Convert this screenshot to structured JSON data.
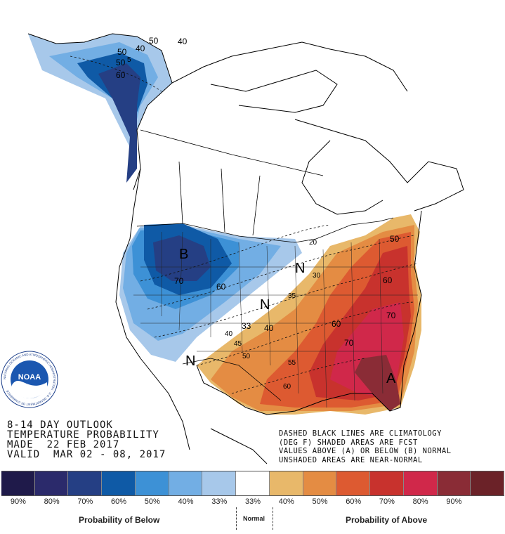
{
  "map": {
    "contour_labels": [
      {
        "text": "50",
        "kind": "below"
      },
      {
        "text": "40",
        "kind": "below"
      },
      {
        "text": "50",
        "kind": "below"
      },
      {
        "text": "60",
        "kind": "below"
      },
      {
        "text": "70",
        "kind": "below"
      },
      {
        "text": "60",
        "kind": "below"
      },
      {
        "text": "40",
        "kind": "below"
      },
      {
        "text": "50",
        "kind": "below"
      },
      {
        "text": "70",
        "kind": "above"
      },
      {
        "text": "60",
        "kind": "above"
      },
      {
        "text": "60",
        "kind": "above"
      },
      {
        "text": "50",
        "kind": "above"
      },
      {
        "text": "70",
        "kind": "above"
      },
      {
        "text": "40",
        "kind": "above"
      },
      {
        "text": "33",
        "kind": "above"
      },
      {
        "text": "45",
        "kind": "clim"
      },
      {
        "text": "35",
        "kind": "clim"
      },
      {
        "text": "30",
        "kind": "clim"
      },
      {
        "text": "55",
        "kind": "clim"
      },
      {
        "text": "60",
        "kind": "clim"
      },
      {
        "text": "40",
        "kind": "clim"
      },
      {
        "text": "50",
        "kind": "clim"
      },
      {
        "text": "20",
        "kind": "clim"
      },
      {
        "text": "5",
        "kind": "clim"
      }
    ],
    "region_letters": [
      {
        "text": "B"
      },
      {
        "text": "A"
      },
      {
        "text": "N"
      },
      {
        "text": "N"
      },
      {
        "text": "N"
      }
    ]
  },
  "logo": {
    "text": "NOAA",
    "ring_text": "NATIONAL OCEANIC AND ATMOSPHERIC ADMINISTRATION · U.S. DEPARTMENT OF COMMERCE"
  },
  "info": {
    "line1": "8-14 DAY OUTLOOK",
    "line2": "TEMPERATURE PROBABILITY",
    "line3": "MADE  22 FEB 2017",
    "line4": "VALID  MAR 02 - 08, 2017"
  },
  "notes": {
    "line1": "DASHED BLACK LINES ARE CLIMATOLOGY",
    "line2": "(DEG F) SHADED AREAS ARE FCST",
    "line3": "VALUES ABOVE (A) OR BELOW (B) NORMAL",
    "line4": "UNSHADED AREAS ARE NEAR-NORMAL"
  },
  "legend": {
    "swatches": [
      {
        "color": "#1f1a4a",
        "label": "90%"
      },
      {
        "color": "#2b2a6b",
        "label": "80%"
      },
      {
        "color": "#253f84",
        "label": "70%"
      },
      {
        "color": "#0f5aa6",
        "label": "60%"
      },
      {
        "color": "#3d91d6",
        "label": "50%"
      },
      {
        "color": "#72aee4",
        "label": "40%"
      },
      {
        "color": "#a7c8ea",
        "label": "33%"
      },
      {
        "color": "#ffffff",
        "label": "33%"
      },
      {
        "color": "#e8b86a",
        "label": "40%"
      },
      {
        "color": "#e48c43",
        "label": "50%"
      },
      {
        "color": "#dd5a31",
        "label": "60%"
      },
      {
        "color": "#c8322d",
        "label": "70%"
      },
      {
        "color": "#d0284a",
        "label": "80%"
      },
      {
        "color": "#8a2c36",
        "label": "90%"
      },
      {
        "color": "#6b2228",
        "label": ""
      }
    ],
    "below_caption": "Probability of Below",
    "normal_caption": "Normal",
    "above_caption": "Probability of Above"
  }
}
